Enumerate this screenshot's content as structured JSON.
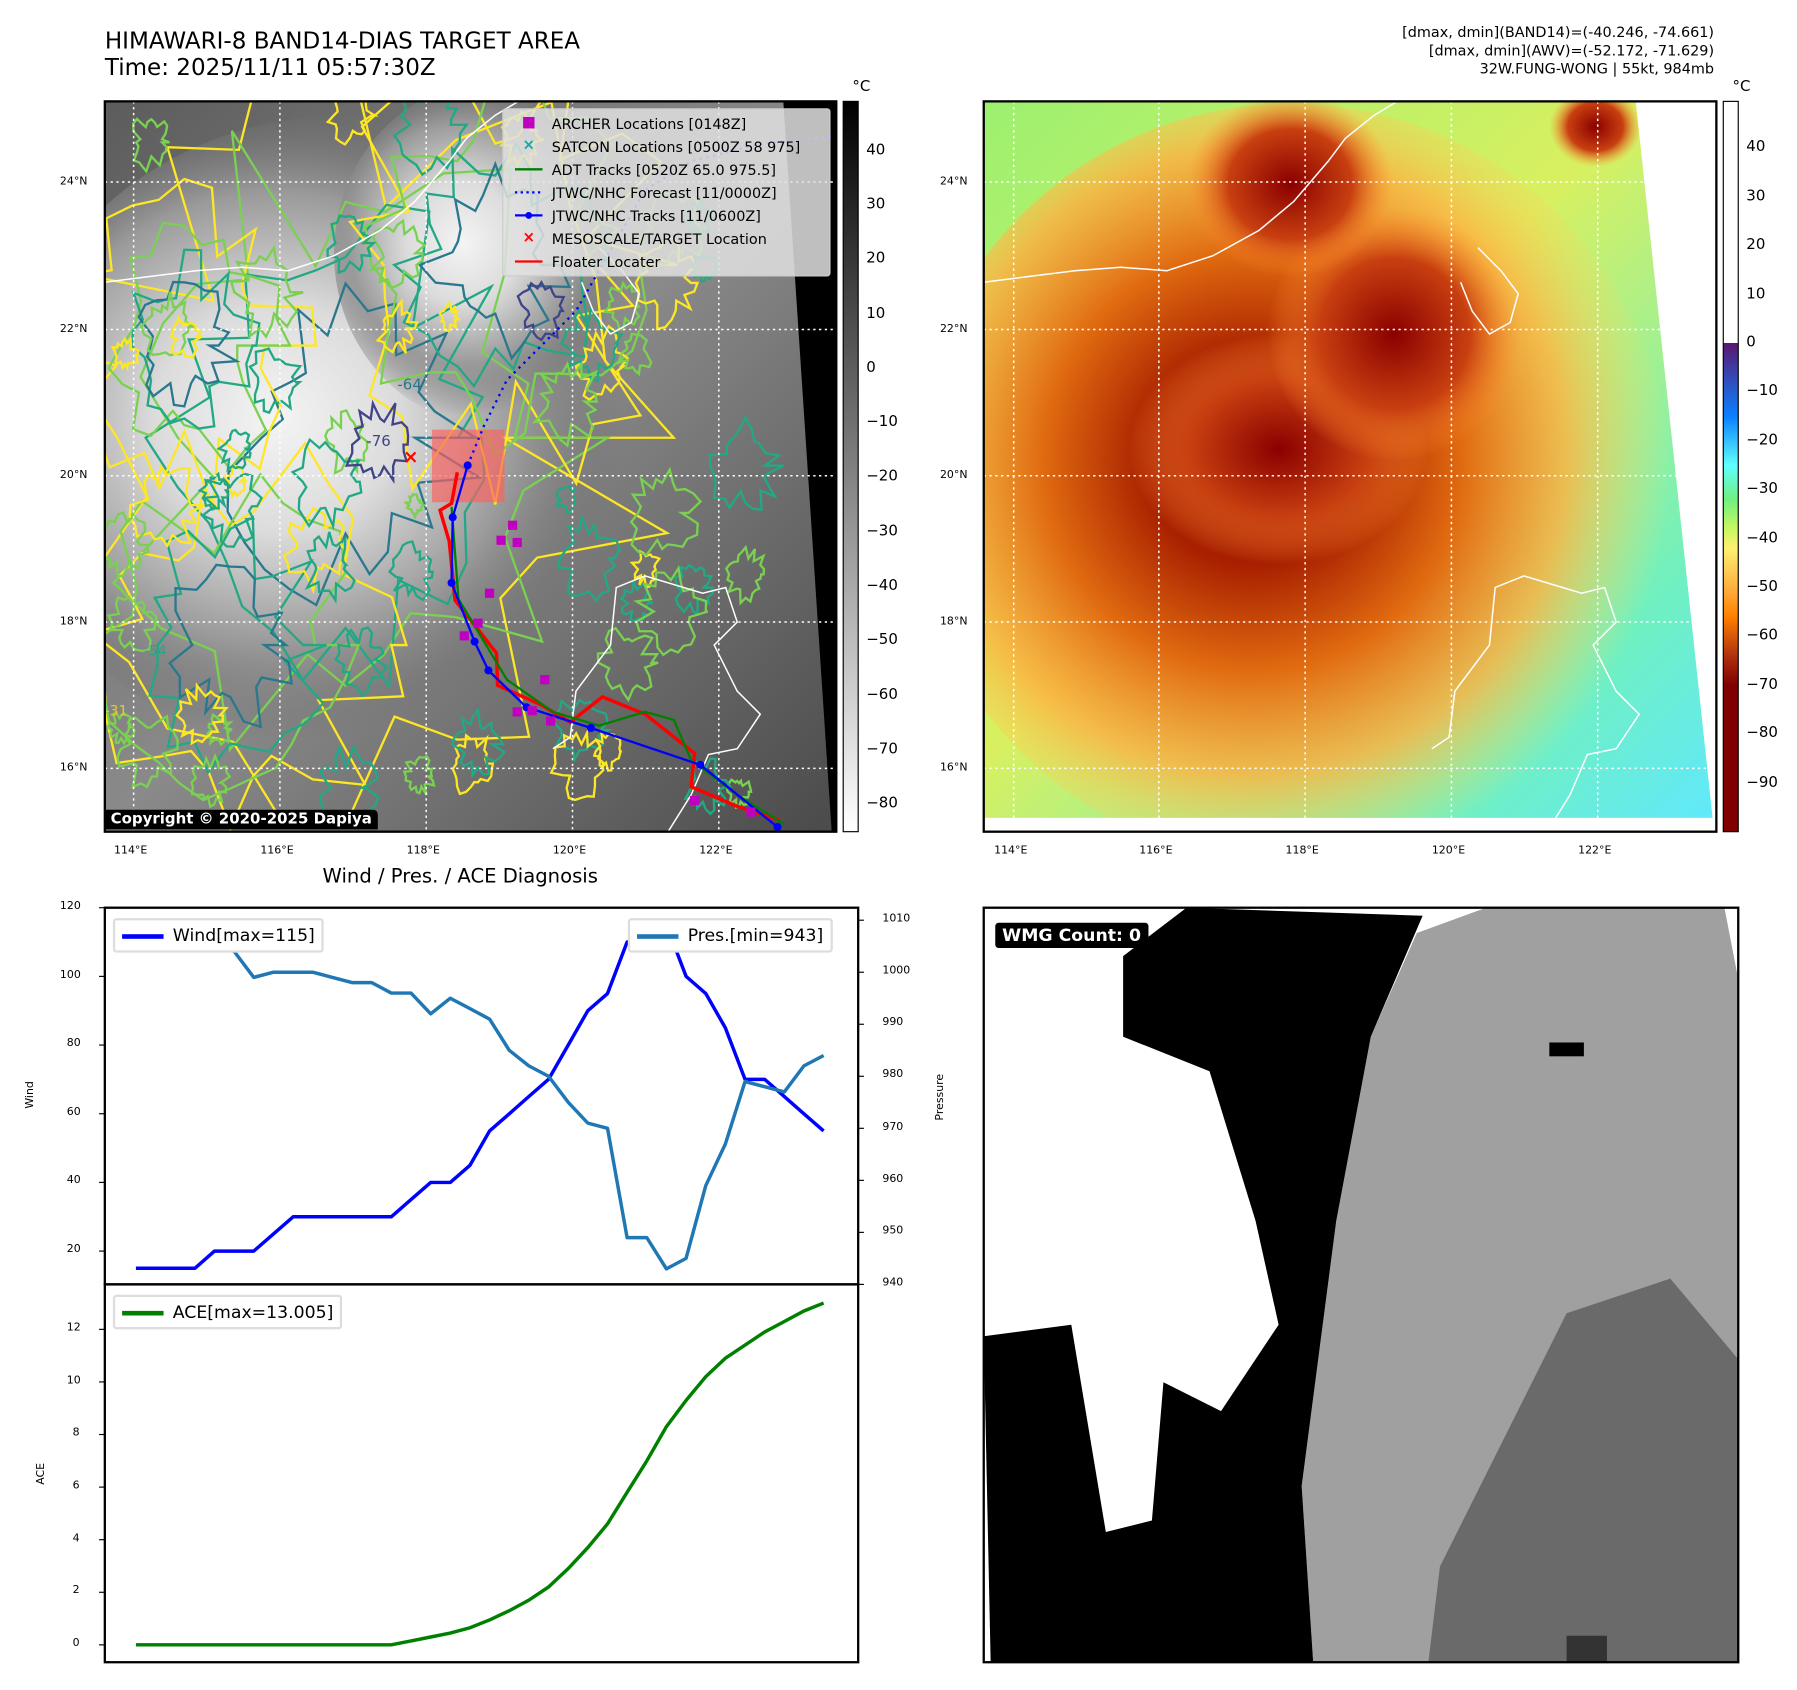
{
  "header": {
    "title_line1": "HIMAWARI-8 BAND14-DIAS TARGET AREA",
    "title_line2": "Time: 2025/11/11 05:57:30Z",
    "info_line1": "[dmax, dmin](BAND14)=(-40.246, -74.661)",
    "info_line2": "[dmax, dmin](AWV)=(-52.172, -71.629)",
    "info_line3": "32W.FUNG-WONG | 55kt, 984mb"
  },
  "maps": {
    "lat_labels": [
      "24°N",
      "22°N",
      "20°N",
      "18°N",
      "16°N"
    ],
    "lon_labels": [
      "114°E",
      "116°E",
      "118°E",
      "120°E",
      "122°E"
    ],
    "contour_labels": [
      "-64",
      "-76",
      "-54",
      "-31"
    ],
    "copyright": "Copyright © 2020-2025 Dapiya",
    "unit": "°C"
  },
  "legend": {
    "items": [
      {
        "label": "ARCHER Locations [0148Z]",
        "marker": "■",
        "color": "#c000c0"
      },
      {
        "label": "SATCON Locations [0500Z 58 975]",
        "marker": "×",
        "color": "#00b0b0"
      },
      {
        "label": "ADT Tracks [0520Z 65.0 975.5]",
        "marker": "line",
        "color": "#008000"
      },
      {
        "label": "JTWC/NHC Forecast [11/0000Z]",
        "marker": "dots",
        "color": "#0000ff"
      },
      {
        "label": "JTWC/NHC Tracks [11/0600Z]",
        "marker": "line-dot",
        "color": "#0000ff"
      },
      {
        "label": "MESOSCALE/TARGET Location",
        "marker": "×",
        "color": "#ff0000"
      },
      {
        "label": "Floater Locater",
        "marker": "line",
        "color": "#ff0000"
      }
    ]
  },
  "colorbars": {
    "band14": {
      "ticks": [
        "40",
        "30",
        "20",
        "10",
        "0",
        "−10",
        "−20",
        "−30",
        "−40",
        "−50",
        "−60",
        "−70",
        "−80"
      ],
      "values": [
        40,
        30,
        20,
        10,
        0,
        -10,
        -20,
        -30,
        -40,
        -50,
        -60,
        -70,
        -80
      ],
      "range": [
        49,
        -85
      ]
    },
    "awv": {
      "ticks": [
        "40",
        "30",
        "20",
        "10",
        "0",
        "−10",
        "−20",
        "−30",
        "−40",
        "−50",
        "−60",
        "−70",
        "−80",
        "−90"
      ],
      "values": [
        40,
        30,
        20,
        10,
        0,
        -10,
        -20,
        -30,
        -40,
        -50,
        -60,
        -70,
        -80,
        -90
      ],
      "range": [
        49.5,
        -100
      ],
      "stops": [
        [
          49.5,
          "#ffffff"
        ],
        [
          0.01,
          "#ffffff"
        ],
        [
          0,
          "#5a1870"
        ],
        [
          -8,
          "#3050c0"
        ],
        [
          -15,
          "#0a80ff"
        ],
        [
          -25,
          "#60ffff"
        ],
        [
          -32,
          "#70f080"
        ],
        [
          -38,
          "#c8f860"
        ],
        [
          -42,
          "#fff070"
        ],
        [
          -50,
          "#ffb040"
        ],
        [
          -56,
          "#ff8000"
        ],
        [
          -64,
          "#b03010"
        ],
        [
          -70,
          "#800000"
        ],
        [
          -100,
          "#800000"
        ]
      ]
    }
  },
  "wmg": {
    "label": "WMG Count: 0"
  },
  "chart_data": [
    {
      "type": "line",
      "title": "Wind / Pres. / ACE Diagnosis",
      "x": [
        0,
        1,
        2,
        3,
        4,
        5,
        6,
        7,
        8,
        9,
        10,
        11,
        12,
        13,
        14,
        15,
        16,
        17,
        18,
        19,
        20,
        21,
        22,
        23,
        24,
        25,
        26,
        27,
        28,
        29,
        30,
        31,
        32,
        33,
        34,
        35
      ],
      "ylabel": "Wind",
      "y2label": "Pressure",
      "ylim": [
        10.3,
        120
      ],
      "y2lim": [
        940,
        1012.4
      ],
      "yticks": [
        20,
        40,
        60,
        80,
        100,
        120
      ],
      "y2ticks": [
        940,
        950,
        960,
        970,
        980,
        990,
        1000,
        1010
      ],
      "series": [
        {
          "name": "Wind[max=115]",
          "axis": "left",
          "color": "#0000ff",
          "values": [
            15,
            15,
            15,
            15,
            20,
            20,
            20,
            25,
            30,
            30,
            30,
            30,
            30,
            30,
            35,
            40,
            40,
            45,
            55,
            60,
            65,
            70,
            80,
            90,
            95,
            110,
            110,
            115,
            100,
            95,
            85,
            70,
            70,
            65,
            60,
            55
          ]
        },
        {
          "name": "Pres.[min=943]",
          "axis": "right",
          "color": "#1f77b4",
          "values": [
            1009,
            1006,
            1006,
            1006,
            1005,
            1004,
            999,
            1000,
            1000,
            1000,
            999,
            998,
            998,
            996,
            996,
            992,
            995,
            993,
            991,
            985,
            982,
            980,
            975,
            971,
            970,
            949,
            949,
            943,
            945,
            959,
            967,
            979,
            978,
            977,
            982,
            984
          ]
        }
      ]
    },
    {
      "type": "line",
      "ylabel": "ACE",
      "ylim": [
        -0.66,
        13.71
      ],
      "yticks": [
        0,
        2,
        4,
        6,
        8,
        10,
        12
      ],
      "series": [
        {
          "name": "ACE[max=13.005]",
          "color": "#008000",
          "values": [
            0,
            0,
            0,
            0,
            0,
            0,
            0,
            0,
            0,
            0,
            0,
            0,
            0,
            0,
            0.15,
            0.3,
            0.45,
            0.65,
            0.95,
            1.3,
            1.7,
            2.2,
            2.9,
            3.7,
            4.6,
            5.8,
            7.0,
            8.3,
            9.3,
            10.2,
            10.9,
            11.4,
            11.9,
            12.3,
            12.7,
            13.0
          ]
        }
      ]
    }
  ]
}
